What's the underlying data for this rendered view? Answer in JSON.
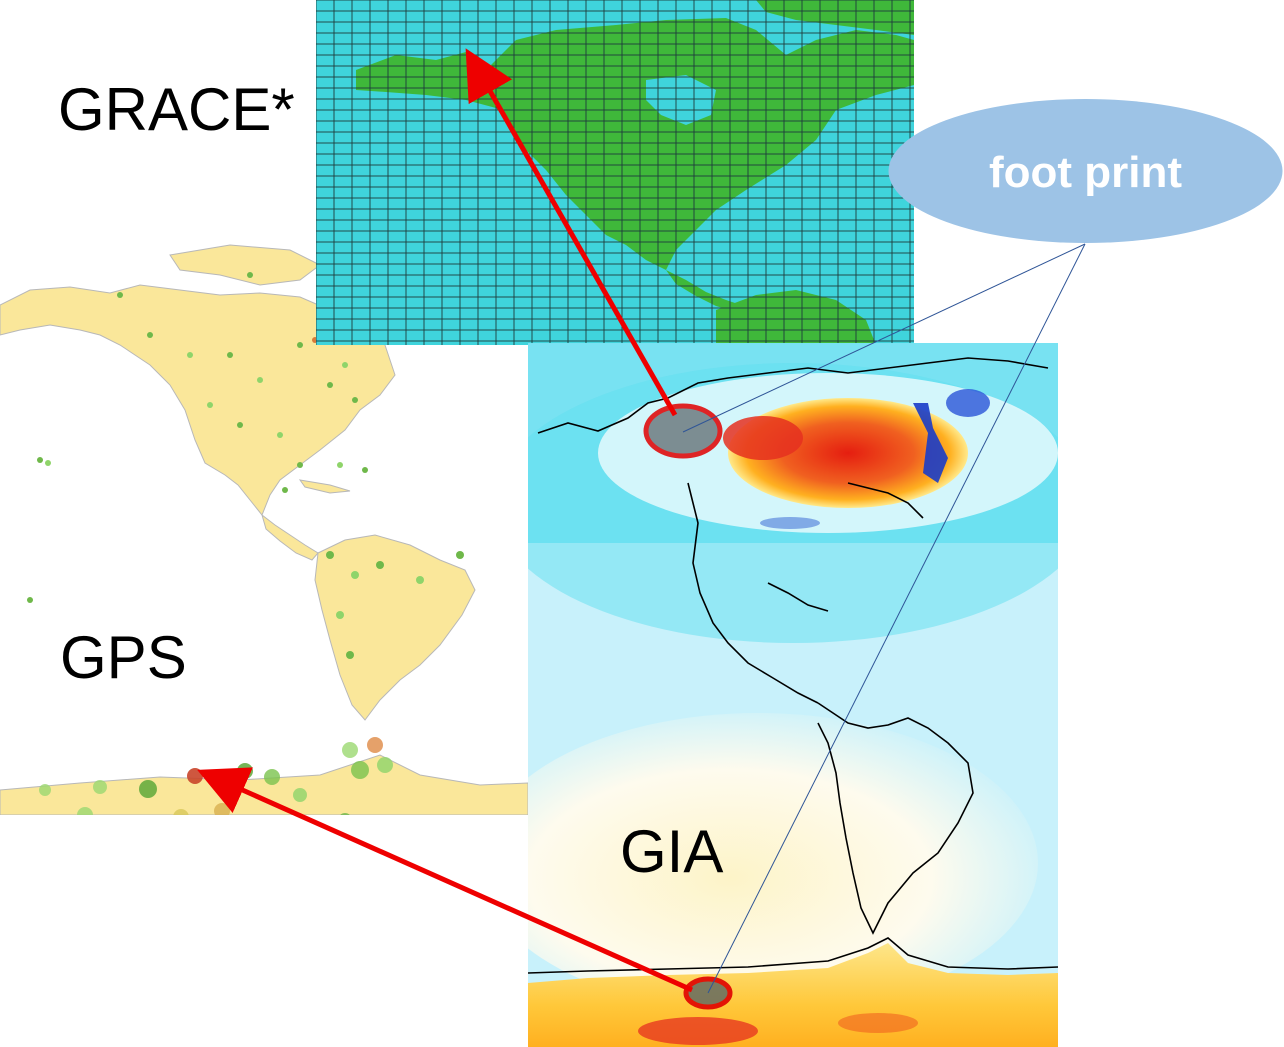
{
  "labels": {
    "grace": "GRACE*",
    "gps": "GPS",
    "gia": "GIA"
  },
  "callout": {
    "text": "foot print"
  },
  "colors": {
    "grace_ocean": "#3fd4dc",
    "grace_land": "#3fb83a",
    "grace_grid": "#1e3b3b",
    "gps_land": "#fae79a",
    "gps_coast": "#b8b8b8",
    "gia_background": "#c8f1fb",
    "gia_uplift_high": "#e51e10",
    "gia_uplift_mid": "#ffb020",
    "gia_subsidence": "#1a3cc8",
    "callout_fill": "#9dc3e6",
    "arrow": "#ee0000"
  },
  "icons": {
    "gps_station": "circle-marker",
    "highlight": "red-ellipse"
  }
}
